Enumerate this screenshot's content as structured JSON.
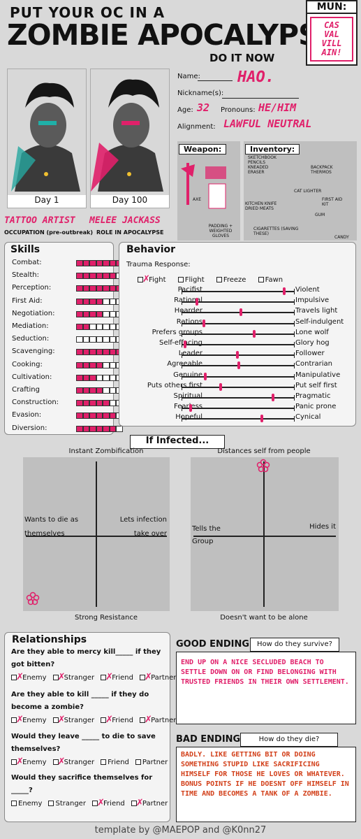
{
  "header": {
    "line1": "PUT YOUR OC IN A",
    "line2": "ZOMBIE APOCALYPSE",
    "line3": "DO IT NOW",
    "mun_label": "MUN:",
    "mun_logo": "CAS VAL VILL AIN!"
  },
  "portraits": {
    "day1": "Day 1",
    "day100": "Day 100",
    "occupation_value": "TATTOO ARTIST",
    "occupation_label": "OCCUPATION (pre-outbreak)",
    "role_value": "MELEE JACKASS",
    "role_label": "ROLE IN APOCALYPSE"
  },
  "info": {
    "name_label": "Name:",
    "name_value": "HAO.",
    "nickname_label": "Nickname(s):",
    "nickname_value": "",
    "age_label": "Age:",
    "age_value": "32",
    "pronouns_label": "Pronouns:",
    "pronouns_value": "HE/HIM",
    "alignment_label": "Alignment:",
    "alignment_value": "LAWFUL NEUTRAL"
  },
  "weapon": {
    "title": "Weapon:",
    "notes": [
      "AXE",
      "PADDING + WEIGHTED GLOVES"
    ]
  },
  "inventory": {
    "title": "Inventory:",
    "notes": [
      "SKETCHBOOK PENCILS KNEADED ERASER",
      "BACKPACK THERMOS",
      "CAT LIGHTER",
      "FIRST AID KIT",
      "KITCHEN KNIFE DRIED MEATS",
      "GUM",
      "CIGARETTES (SAVING THESE)",
      "CANDY"
    ]
  },
  "skills": {
    "title": "Skills",
    "items": [
      {
        "label": "Combat:",
        "filled": 7
      },
      {
        "label": "Stealth:",
        "filled": 6
      },
      {
        "label": "Perception:",
        "filled": 7
      },
      {
        "label": "First Aid:",
        "filled": 4
      },
      {
        "label": "Negotiation:",
        "filled": 4
      },
      {
        "label": "Mediation:",
        "filled": 2
      },
      {
        "label": "Seduction:",
        "filled": 0
      },
      {
        "label": "Scavenging:",
        "filled": 7
      },
      {
        "label": "Cooking:",
        "filled": 4
      },
      {
        "label": "Cultivation:",
        "filled": 3
      },
      {
        "label": "Crafting",
        "filled": 4
      },
      {
        "label": "Construction:",
        "filled": 5
      },
      {
        "label": "Evasion:",
        "filled": 6
      },
      {
        "label": "Diversion:",
        "filled": 6
      }
    ],
    "total": 7
  },
  "behavior": {
    "title": "Behavior",
    "trauma_label": "Trauma Response:",
    "trauma_options": [
      {
        "label": "Fight",
        "checked": true
      },
      {
        "label": "Flight",
        "checked": false
      },
      {
        "label": "Freeze",
        "checked": false
      },
      {
        "label": "Fawn",
        "checked": false
      }
    ],
    "scales": [
      {
        "left": "Pacifist",
        "right": "Violent",
        "value": 0.92
      },
      {
        "left": "Rational",
        "right": "Impulsive",
        "value": 0.14
      },
      {
        "left": "Hoarder",
        "right": "Travels light",
        "value": 0.53
      },
      {
        "left": "Rations",
        "right": "Self-indulgent",
        "value": 0.2
      },
      {
        "left": "Prefers groups",
        "right": "Lone wolf",
        "value": 0.65
      },
      {
        "left": "Self-effacing",
        "right": "Glory hog",
        "value": 0.03
      },
      {
        "left": "Leader",
        "right": "Follower",
        "value": 0.5
      },
      {
        "left": "Agreeable",
        "right": "Contrarian",
        "value": 0.51
      },
      {
        "left": "Genuine",
        "right": "Manipulative",
        "value": 0.21
      },
      {
        "left": "Puts others first",
        "right": "Put self first",
        "value": 0.35
      },
      {
        "left": "Spiritual",
        "right": "Pragmatic",
        "value": 0.82
      },
      {
        "left": "Fearless",
        "right": "Panic prone",
        "value": 0.08
      },
      {
        "left": "Hopeful",
        "right": "Cynical",
        "value": 0.72
      }
    ]
  },
  "infected": {
    "title": "If Infected...",
    "chart1": {
      "top": "Instant Zombification",
      "bottom": "Strong Resistance",
      "left": "Wants to die as themselves",
      "right": "Lets infection take over",
      "marker": {
        "x": -0.85,
        "y": -0.85
      }
    },
    "chart2": {
      "top": "Distances self from people",
      "bottom": "Doesn't want to be alone",
      "left": "Tells the Group",
      "right": "Hides it",
      "marker": {
        "x": -0.05,
        "y": 0.9
      }
    }
  },
  "relationships": {
    "title": "Relationships",
    "questions": [
      {
        "text": "Are they able to mercy kill_____ if they got bitten?",
        "options": [
          {
            "label": "Enemy",
            "x": true
          },
          {
            "label": "Stranger",
            "x": true
          },
          {
            "label": "Friend",
            "x": true
          },
          {
            "label": "Partner",
            "x": true
          }
        ]
      },
      {
        "text": "Are they able to kill _____ if they do become a zombie?",
        "options": [
          {
            "label": "Enemy",
            "x": true
          },
          {
            "label": "Stranger",
            "x": true
          },
          {
            "label": "Friend",
            "x": true
          },
          {
            "label": "Partner",
            "x": true
          }
        ]
      },
      {
        "text": "Would they leave _____ to die to save themselves?",
        "options": [
          {
            "label": "Enemy",
            "x": true
          },
          {
            "label": "Stranger",
            "x": true
          },
          {
            "label": "Friend",
            "x": false
          },
          {
            "label": "Partner",
            "x": false
          }
        ]
      },
      {
        "text": "Would they sacrifice themselves for _____?",
        "options": [
          {
            "label": "Enemy",
            "x": false
          },
          {
            "label": "Stranger",
            "x": false
          },
          {
            "label": "Friend",
            "x": true
          },
          {
            "label": "Partner",
            "x": true
          }
        ]
      }
    ]
  },
  "good_ending": {
    "title": "GOOD ENDING",
    "prompt": "How do they survive?",
    "text": "END UP ON A NICE SECLUDED BEACH TO SETTLE DOWN ON OR FIND BELONGING WITH TRUSTED FRIENDS IN THEIR OWN SETTLEMENT."
  },
  "bad_ending": {
    "title": "BAD ENDING",
    "prompt": "How do they die?",
    "text": "BADLY. LIKE GETTING BIT OR DOING SOMETHING STUPID LIKE SACRIFICING HIMSELF FOR THOSE HE LOVES OR WHATEVER. BONUS POINTS IF HE DOESNT OFF HIMSELF IN TIME AND BECOMES A TANK OF A ZOMBIE."
  },
  "footer": {
    "credit": "template by @MAEPOP and @K0nn27"
  },
  "colors": {
    "accent": "#e0206a",
    "background": "#d9d9d9"
  }
}
